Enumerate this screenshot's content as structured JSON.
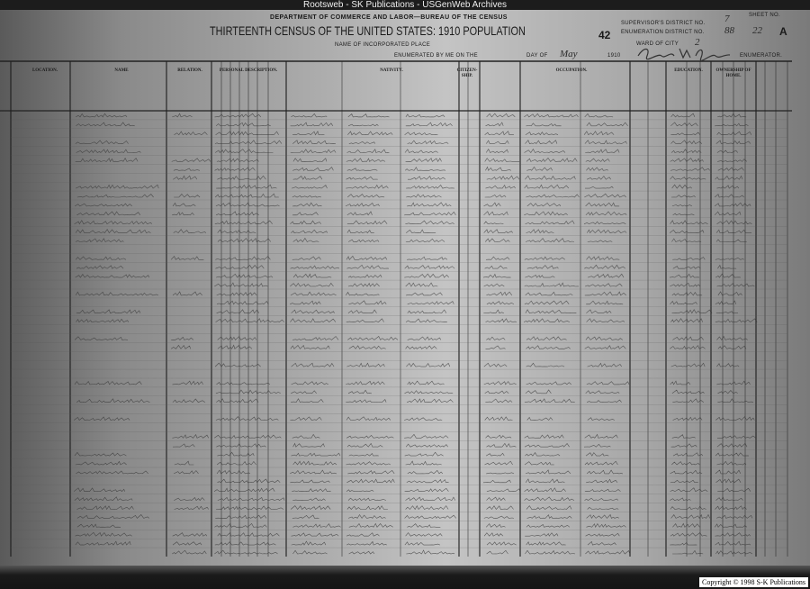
{
  "banner": "Rootsweb - SK Publications - USGenWeb Archives",
  "header": {
    "department": "DEPARTMENT OF COMMERCE AND LABOR—BUREAU OF THE CENSUS",
    "title": "THIRTEENTH CENSUS OF THE UNITED STATES: 1910 POPULATION",
    "form_number": "42",
    "incorporated_place_label": "NAME OF INCORPORATED PLACE",
    "enumerated_label": "ENUMERATED BY ME ON THE",
    "day_of_label": "DAY OF",
    "day_of_value": "May",
    "year_label": "1910",
    "supervisor_label": "SUPERVISOR'S DISTRICT NO.",
    "supervisor_value": "7",
    "enumeration_label": "ENUMERATION DISTRICT NO.",
    "enumeration_value": "88",
    "sheet_label": "SHEET NO.",
    "sheet_value": "22",
    "sheet_letter": "A",
    "ward_label": "WARD OF CITY",
    "ward_value": "2",
    "enumerator_label": "ENUMERATOR."
  },
  "columns": {
    "location": "LOCATION.",
    "name": "NAME",
    "relation": "RELATION.",
    "personal": "PERSONAL DESCRIPTION.",
    "nativity": "NATIVITY.",
    "citizenship": "CITIZEN-SHIP.",
    "occupation": "OCCUPATION.",
    "education": "EDUCATION.",
    "ownership": "OWNERSHIP OF HOME."
  },
  "footer": {
    "copyright": "Copyright © 1998 S-K Publications"
  }
}
